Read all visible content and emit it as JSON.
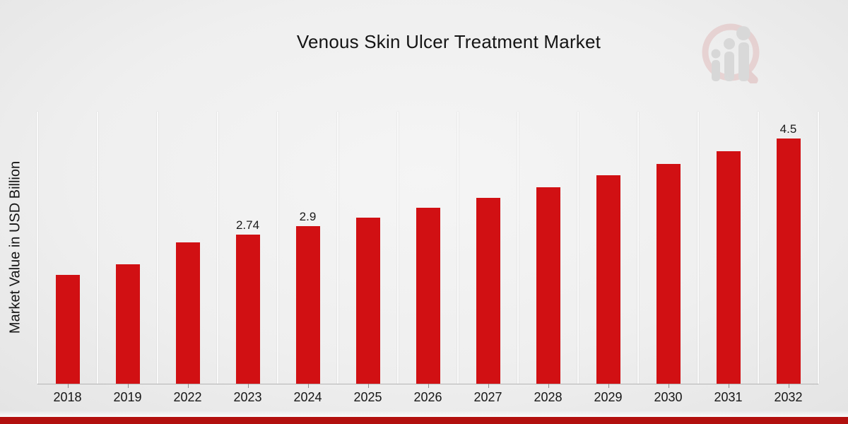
{
  "header": {
    "title": "Venous Skin Ulcer Treatment Market",
    "logo": "market-research-future-watermark"
  },
  "colors": {
    "bar": "#d11013",
    "footer_bar": "#b2100e",
    "background": "#ededed",
    "axis_line": "#b5b5b5",
    "gridline": "#f9f9f9",
    "text": "#141414",
    "logo_ring": "#d89a9a",
    "logo_figure": "#a8a8a8"
  },
  "chart_data": {
    "type": "bar",
    "title": "Venous Skin Ulcer Treatment Market",
    "xlabel": "",
    "ylabel": "Market Value in USD Billion",
    "categories": [
      "2018",
      "2019",
      "2022",
      "2023",
      "2024",
      "2025",
      "2026",
      "2027",
      "2028",
      "2029",
      "2030",
      "2031",
      "2032"
    ],
    "values": [
      2.0,
      2.2,
      2.6,
      2.74,
      2.9,
      3.05,
      3.24,
      3.42,
      3.61,
      3.83,
      4.04,
      4.27,
      4.5
    ],
    "bar_labels": [
      "",
      "",
      "",
      "2.74",
      "2.9",
      "",
      "",
      "",
      "",
      "",
      "",
      "",
      "4.5"
    ],
    "ylim": [
      0,
      5
    ],
    "grid": "vertical-only",
    "legend": "none",
    "unit": "USD Billion"
  }
}
